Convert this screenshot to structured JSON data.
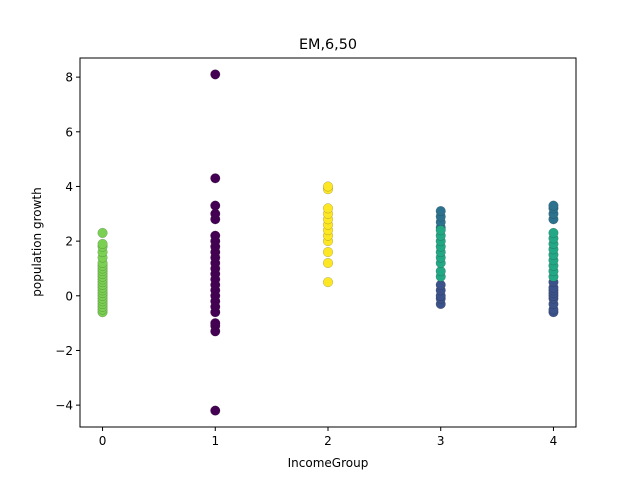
{
  "chart_data": {
    "type": "scatter",
    "title": "EM,6,50",
    "xlabel": "IncomeGroup",
    "ylabel": "population growth",
    "xlim": [
      -0.2,
      4.2
    ],
    "ylim": [
      -4.8,
      8.7
    ],
    "xticks": [
      "0",
      "1",
      "2",
      "3",
      "4"
    ],
    "yticks": [
      "−4",
      "−2",
      "0",
      "2",
      "4",
      "6",
      "8"
    ],
    "grid": false,
    "legend": "none",
    "series": [
      {
        "color": "#7ad151",
        "points": [
          [
            0,
            -0.6
          ],
          [
            0,
            -0.5
          ],
          [
            0,
            -0.4
          ],
          [
            0,
            -0.3
          ],
          [
            0,
            -0.2
          ],
          [
            0,
            -0.1
          ],
          [
            0,
            0.0
          ],
          [
            0,
            0.1
          ],
          [
            0,
            0.2
          ],
          [
            0,
            0.3
          ],
          [
            0,
            0.4
          ],
          [
            0,
            0.5
          ],
          [
            0,
            0.6
          ],
          [
            0,
            0.7
          ],
          [
            0,
            0.8
          ],
          [
            0,
            0.9
          ],
          [
            0,
            1.0
          ],
          [
            0,
            1.1
          ],
          [
            0,
            1.2
          ],
          [
            0,
            1.4
          ],
          [
            0,
            1.6
          ],
          [
            0,
            1.8
          ],
          [
            0,
            1.9
          ],
          [
            0,
            2.3
          ]
        ]
      },
      {
        "color": "#440154",
        "points": [
          [
            1,
            -4.2
          ],
          [
            1,
            -1.3
          ],
          [
            1,
            -1.1
          ],
          [
            1,
            -1.0
          ],
          [
            1,
            -0.6
          ],
          [
            1,
            -0.4
          ],
          [
            1,
            -0.2
          ],
          [
            1,
            0.0
          ],
          [
            1,
            0.2
          ],
          [
            1,
            0.4
          ],
          [
            1,
            0.6
          ],
          [
            1,
            0.8
          ],
          [
            1,
            1.0
          ],
          [
            1,
            1.2
          ],
          [
            1,
            1.4
          ],
          [
            1,
            1.6
          ],
          [
            1,
            1.8
          ],
          [
            1,
            2.0
          ],
          [
            1,
            2.2
          ],
          [
            1,
            2.8
          ],
          [
            1,
            3.0
          ],
          [
            1,
            3.3
          ],
          [
            1,
            4.3
          ],
          [
            1,
            8.1
          ]
        ]
      },
      {
        "color": "#fde725",
        "points": [
          [
            2,
            0.5
          ],
          [
            2,
            1.2
          ],
          [
            2,
            1.6
          ],
          [
            2,
            2.0
          ],
          [
            2,
            2.2
          ],
          [
            2,
            2.4
          ],
          [
            2,
            2.6
          ],
          [
            2,
            2.8
          ],
          [
            2,
            3.0
          ],
          [
            2,
            3.2
          ],
          [
            2,
            3.9
          ],
          [
            2,
            4.0
          ]
        ]
      },
      {
        "color": "#3b528b",
        "points": [
          [
            3,
            -0.3
          ],
          [
            3,
            -0.1
          ],
          [
            3,
            0.0
          ],
          [
            3,
            0.2
          ],
          [
            3,
            0.4
          ],
          [
            4,
            -0.6
          ],
          [
            4,
            -0.5
          ],
          [
            4,
            -0.3
          ],
          [
            4,
            -0.1
          ],
          [
            4,
            0.0
          ],
          [
            4,
            0.1
          ],
          [
            4,
            0.2
          ],
          [
            4,
            0.3
          ],
          [
            4,
            0.5
          ]
        ]
      },
      {
        "color": "#2c728e",
        "points": [
          [
            3,
            2.5
          ],
          [
            3,
            2.7
          ],
          [
            3,
            2.9
          ],
          [
            3,
            3.1
          ],
          [
            4,
            2.8
          ],
          [
            4,
            3.0
          ],
          [
            4,
            3.2
          ],
          [
            4,
            3.3
          ]
        ]
      },
      {
        "color": "#22a884",
        "points": [
          [
            3,
            0.7
          ],
          [
            3,
            0.9
          ],
          [
            3,
            1.2
          ],
          [
            3,
            1.4
          ],
          [
            3,
            1.6
          ],
          [
            3,
            1.8
          ],
          [
            3,
            2.0
          ],
          [
            3,
            2.2
          ],
          [
            3,
            2.4
          ],
          [
            4,
            0.7
          ],
          [
            4,
            0.9
          ],
          [
            4,
            1.1
          ],
          [
            4,
            1.3
          ],
          [
            4,
            1.5
          ],
          [
            4,
            1.7
          ],
          [
            4,
            1.9
          ],
          [
            4,
            2.1
          ],
          [
            4,
            2.3
          ]
        ]
      }
    ]
  }
}
